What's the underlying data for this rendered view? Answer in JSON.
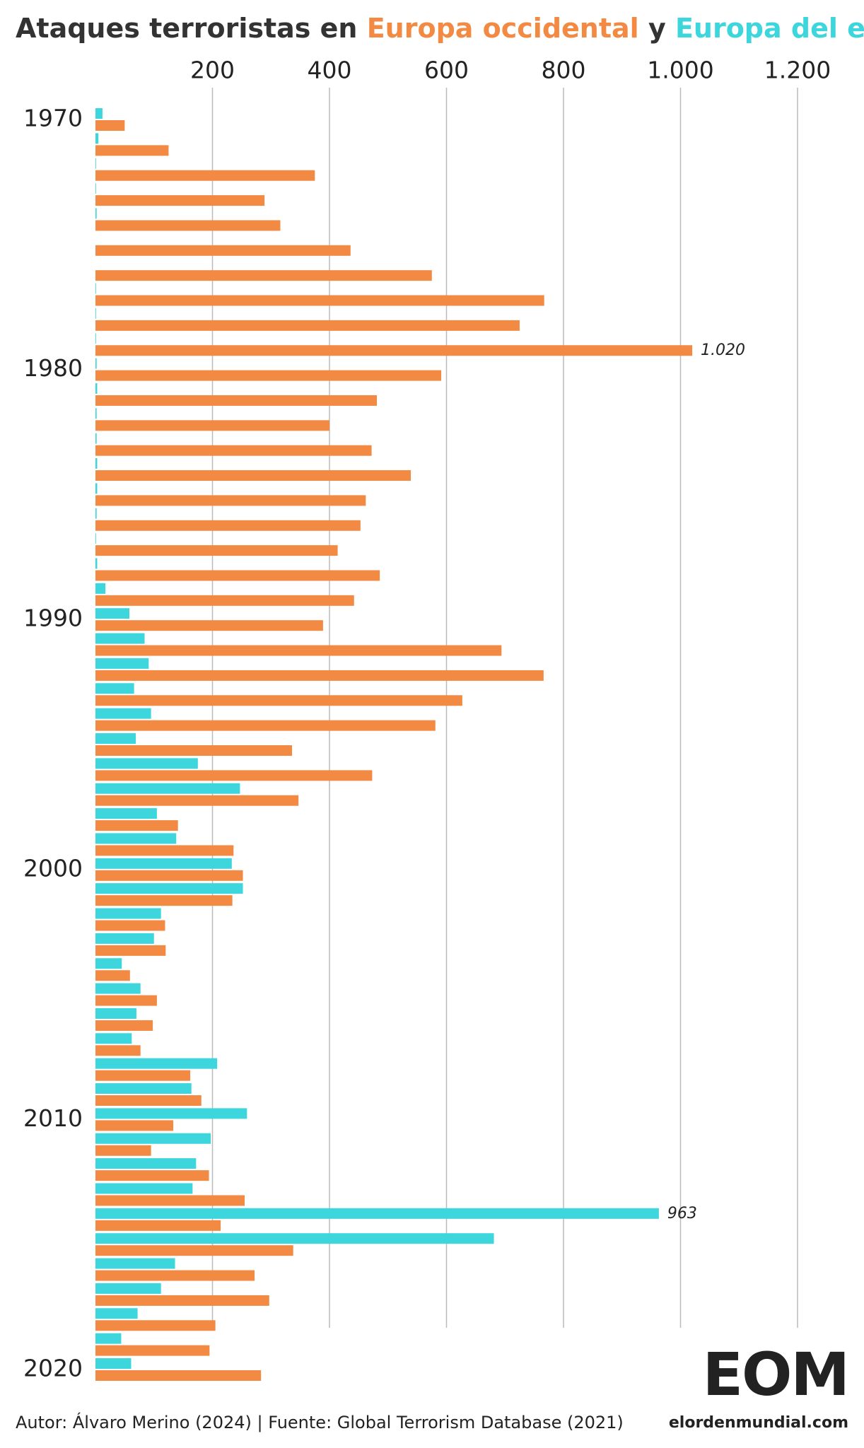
{
  "chart_data": {
    "type": "hbar",
    "title": "Ataques terroristas en",
    "title_connector": "y",
    "categories": [
      "1970",
      null,
      null,
      null,
      null,
      null,
      null,
      null,
      null,
      null,
      "1980",
      null,
      null,
      null,
      null,
      null,
      null,
      null,
      null,
      null,
      "1990",
      null,
      null,
      null,
      null,
      null,
      null,
      null,
      null,
      null,
      "2000",
      null,
      null,
      null,
      null,
      null,
      null,
      null,
      null,
      null,
      "2010",
      null,
      null,
      null,
      null,
      null,
      null,
      null,
      null,
      null,
      "2020"
    ],
    "series": [
      {
        "name": "Europa del este",
        "color": "#3dd6dc",
        "values": [
          12,
          5,
          1,
          1,
          2,
          0,
          0,
          1,
          1,
          1,
          2,
          3,
          2,
          2,
          3,
          3,
          2,
          1,
          3,
          17,
          58,
          84,
          91,
          66,
          95,
          69,
          175,
          247,
          105,
          138,
          233,
          252,
          112,
          100,
          45,
          77,
          70,
          62,
          208,
          164,
          259,
          197,
          172,
          166,
          963,
          681,
          136,
          112,
          72,
          44,
          61
        ],
        "value_labels": [
          null,
          null,
          null,
          null,
          null,
          null,
          null,
          null,
          null,
          null,
          null,
          null,
          null,
          null,
          null,
          null,
          null,
          null,
          null,
          null,
          null,
          null,
          null,
          null,
          null,
          null,
          null,
          null,
          null,
          null,
          null,
          null,
          null,
          null,
          null,
          null,
          null,
          null,
          null,
          null,
          null,
          null,
          null,
          null,
          "963",
          null,
          null,
          null,
          null,
          null,
          null
        ]
      },
      {
        "name": "Europa occidental",
        "color": "#f28a43",
        "values": [
          50,
          125,
          375,
          289,
          316,
          436,
          575,
          767,
          725,
          1020,
          591,
          481,
          400,
          472,
          539,
          462,
          453,
          414,
          486,
          442,
          389,
          694,
          766,
          627,
          581,
          336,
          473,
          347,
          141,
          236,
          252,
          234,
          119,
          120,
          59,
          105,
          98,
          77,
          162,
          181,
          133,
          95,
          194,
          255,
          214,
          338,
          272,
          297,
          205,
          195,
          283
        ],
        "value_labels": [
          null,
          null,
          null,
          null,
          null,
          null,
          null,
          null,
          null,
          "1.020",
          null,
          null,
          null,
          null,
          null,
          null,
          null,
          null,
          null,
          null,
          null,
          null,
          null,
          null,
          null,
          null,
          null,
          null,
          null,
          null,
          null,
          null,
          null,
          null,
          null,
          null,
          null,
          null,
          null,
          null,
          null,
          null,
          null,
          null,
          null,
          null,
          null,
          null,
          null,
          null,
          null
        ]
      }
    ],
    "xlim": [
      0,
      1200
    ],
    "xticks": [
      200,
      400,
      600,
      800,
      {
        "value": 1000,
        "label": "1.000"
      },
      {
        "value": 1200,
        "label": "1.200"
      }
    ],
    "grid": true,
    "source": "Autor: Álvaro Merino (2024) | Fuente: Global Terrorism Database (2021)",
    "logo": {
      "text": "EOM",
      "site": "elordenmundial.com"
    }
  }
}
